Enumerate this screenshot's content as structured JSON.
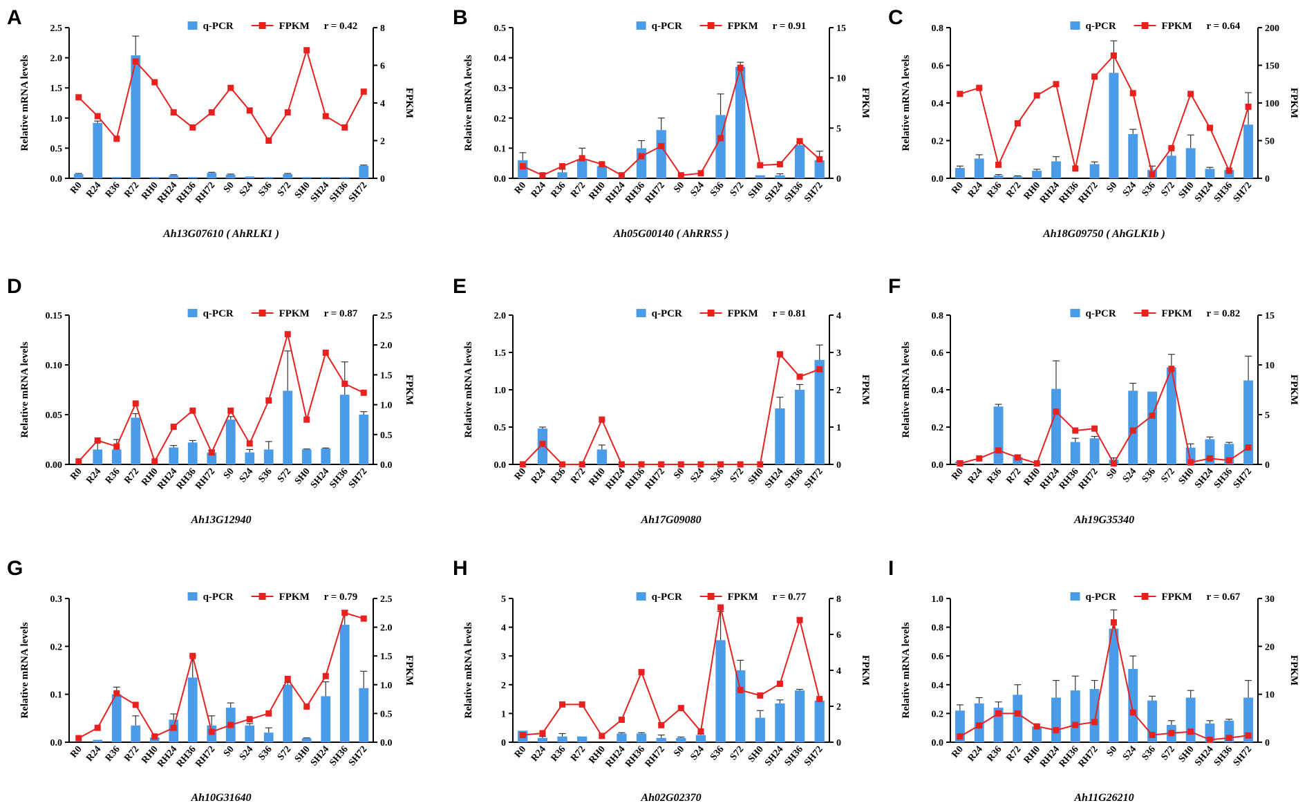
{
  "colors": {
    "bar": "#4a9be8",
    "line": "#e8211f",
    "axis": "#000000",
    "errorbar": "#333333"
  },
  "chart_data": [
    {
      "type": "bar+line",
      "letter": "A",
      "gene": "Ah13G07610 ( AhRLK1 )",
      "legend": {
        "bar": "q-PCR",
        "line": "FPKM",
        "r": "r = 0.42"
      },
      "ylabel": "Relative mRNA levels",
      "y2label": "FPKM",
      "categories": [
        "R0",
        "R24",
        "R36",
        "R72",
        "RH0",
        "RH24",
        "RH36",
        "RH72",
        "S0",
        "S24",
        "S36",
        "S72",
        "SH0",
        "SH24",
        "SH36",
        "SH72"
      ],
      "ylim": [
        0,
        2.5
      ],
      "yticks": [
        "0.0",
        "0.5",
        "1.0",
        "1.5",
        "2.0",
        "2.5"
      ],
      "y2lim": [
        0,
        8
      ],
      "y2ticks": [
        "0",
        "2",
        "4",
        "6",
        "8"
      ],
      "bars": [
        0.07,
        0.92,
        0.02,
        2.04,
        0.02,
        0.05,
        0.02,
        0.09,
        0.06,
        0.03,
        0.02,
        0.07,
        0.02,
        0.02,
        0.02,
        0.21
      ],
      "errors": [
        0.01,
        0.03,
        0.0,
        0.32,
        0.0,
        0.01,
        0.0,
        0.01,
        0.01,
        0.0,
        0.0,
        0.01,
        0.0,
        0.0,
        0.0,
        0.01
      ],
      "fpkm": [
        4.3,
        3.3,
        2.1,
        6.2,
        5.1,
        3.5,
        2.7,
        3.5,
        4.8,
        3.6,
        2.0,
        3.5,
        6.8,
        3.3,
        2.7,
        4.6
      ]
    },
    {
      "type": "bar+line",
      "letter": "B",
      "gene": "Ah05G00140 ( AhRRS5 )",
      "legend": {
        "bar": "q-PCR",
        "line": "FPKM",
        "r": "r = 0.91"
      },
      "ylabel": "Relative mRNA levels",
      "y2label": "FPKM",
      "categories": [
        "R0",
        "R24",
        "R36",
        "R72",
        "RH0",
        "RH24",
        "RH36",
        "RH72",
        "S0",
        "S24",
        "S36",
        "S72",
        "SH0",
        "SH24",
        "SH36",
        "SH72"
      ],
      "ylim": [
        0,
        0.5
      ],
      "yticks": [
        "0.0",
        "0.1",
        "0.2",
        "0.3",
        "0.4",
        "0.5"
      ],
      "y2lim": [
        0,
        15
      ],
      "y2ticks": [
        "0",
        "5",
        "10",
        "15"
      ],
      "bars": [
        0.06,
        0.0,
        0.02,
        0.06,
        0.04,
        0.0,
        0.1,
        0.16,
        0.0,
        0.0,
        0.21,
        0.37,
        0.01,
        0.01,
        0.11,
        0.06
      ],
      "errors": [
        0.025,
        0.0,
        0.01,
        0.04,
        0.01,
        0.0,
        0.025,
        0.04,
        0.0,
        0.0,
        0.07,
        0.015,
        0.0,
        0.005,
        0.01,
        0.03
      ],
      "fpkm": [
        1.2,
        0.3,
        1.2,
        2.0,
        1.4,
        0.3,
        2.2,
        3.2,
        0.3,
        0.5,
        4.0,
        11.0,
        1.3,
        1.4,
        3.7,
        1.9
      ]
    },
    {
      "type": "bar+line",
      "letter": "C",
      "gene": "Ah18G09750 ( AhGLK1b )",
      "legend": {
        "bar": "q-PCR",
        "line": "FPKM",
        "r": "r = 0.64"
      },
      "ylabel": "Relative mRNA levels",
      "y2label": "FPKM",
      "categories": [
        "R0",
        "R24",
        "R36",
        "R72",
        "RH0",
        "RH24",
        "RH36",
        "RH72",
        "S0",
        "S24",
        "S36",
        "S72",
        "SH0",
        "SH24",
        "SH36",
        "SH72"
      ],
      "ylim": [
        0,
        0.8
      ],
      "yticks": [
        "0.0",
        "0.2",
        "0.4",
        "0.6",
        "0.8"
      ],
      "y2lim": [
        0,
        200
      ],
      "y2ticks": [
        "0",
        "50",
        "100",
        "150",
        "200"
      ],
      "bars": [
        0.055,
        0.105,
        0.015,
        0.01,
        0.04,
        0.09,
        0.0,
        0.075,
        0.56,
        0.235,
        0.045,
        0.12,
        0.16,
        0.05,
        0.045,
        0.285
      ],
      "errors": [
        0.01,
        0.02,
        0.005,
        0.003,
        0.008,
        0.025,
        0.0,
        0.012,
        0.17,
        0.025,
        0.02,
        0.04,
        0.07,
        0.008,
        0.01,
        0.17
      ],
      "fpkm": [
        112,
        120,
        18,
        73,
        110,
        125,
        13,
        135,
        163,
        113,
        5,
        40,
        112,
        67,
        10,
        95
      ]
    },
    {
      "type": "bar+line",
      "letter": "D",
      "gene": "Ah13G12940",
      "legend": {
        "bar": "q-PCR",
        "line": "FPKM",
        "r": "r = 0.87"
      },
      "ylabel": "Relative mRNA levels",
      "y2label": "FPKM",
      "categories": [
        "R0",
        "R24",
        "R36",
        "R72",
        "RH0",
        "RH24",
        "RH36",
        "RH72",
        "S0",
        "S24",
        "S36",
        "S72",
        "SH0",
        "SH24",
        "SH36",
        "SH72"
      ],
      "ylim": [
        0,
        0.15
      ],
      "yticks": [
        "0.00",
        "0.05",
        "0.10",
        "0.15"
      ],
      "y2lim": [
        0,
        2.5
      ],
      "y2ticks": [
        "0.0",
        "0.5",
        "1.0",
        "1.5",
        "2.0",
        "2.5"
      ],
      "bars": [
        0.0,
        0.015,
        0.015,
        0.047,
        0.0,
        0.017,
        0.022,
        0.012,
        0.045,
        0.012,
        0.015,
        0.074,
        0.015,
        0.016,
        0.07,
        0.05
      ],
      "errors": [
        0.0,
        0.008,
        0.01,
        0.004,
        0.0,
        0.002,
        0.002,
        0.002,
        0.003,
        0.003,
        0.008,
        0.04,
        0.0005,
        0.0005,
        0.033,
        0.003
      ],
      "fpkm": [
        0.05,
        0.4,
        0.3,
        1.02,
        0.05,
        0.63,
        0.9,
        0.2,
        0.9,
        0.35,
        1.07,
        2.18,
        0.75,
        1.87,
        1.35,
        1.2
      ]
    },
    {
      "type": "bar+line",
      "letter": "E",
      "gene": "Ah17G09080",
      "legend": {
        "bar": "q-PCR",
        "line": "FPKM",
        "r": "r = 0.81"
      },
      "ylabel": "Relative mRNA levels",
      "y2label": "FPKM",
      "categories": [
        "R0",
        "R24",
        "R36",
        "R72",
        "RH0",
        "RH24",
        "RH36",
        "RH72",
        "S0",
        "S24",
        "S36",
        "S72",
        "SH0",
        "SH24",
        "SH36",
        "SH72"
      ],
      "ylim": [
        0,
        2.0
      ],
      "yticks": [
        "0.0",
        "0.5",
        "1.0",
        "1.5",
        "2.0"
      ],
      "y2lim": [
        0,
        4
      ],
      "y2ticks": [
        "0",
        "1",
        "2",
        "3",
        "4"
      ],
      "bars": [
        0.0,
        0.48,
        0.0,
        0.0,
        0.2,
        0.0,
        0.0,
        0.0,
        0.0,
        0.0,
        0.0,
        0.0,
        0.0,
        0.75,
        1.0,
        1.4
      ],
      "errors": [
        0.0,
        0.02,
        0.0,
        0.0,
        0.06,
        0.0,
        0.0,
        0.0,
        0.0,
        0.0,
        0.0,
        0.0,
        0.0,
        0.15,
        0.07,
        0.2
      ],
      "fpkm": [
        0.0,
        0.55,
        0.0,
        0.0,
        1.2,
        0.0,
        0.0,
        0.0,
        0.0,
        0.0,
        0.0,
        0.0,
        0.0,
        2.95,
        2.35,
        2.55
      ]
    },
    {
      "type": "bar+line",
      "letter": "F",
      "gene": "Ah19G35340",
      "legend": {
        "bar": "q-PCR",
        "line": "FPKM",
        "r": "r = 0.82"
      },
      "ylabel": "Relative mRNA levels",
      "y2label": "FPKM",
      "categories": [
        "R0",
        "R24",
        "R36",
        "R72",
        "RH0",
        "RH24",
        "RH36",
        "RH72",
        "S0",
        "S24",
        "S36",
        "S72",
        "SH0",
        "SH24",
        "SH36",
        "SH72"
      ],
      "ylim": [
        0,
        0.8
      ],
      "yticks": [
        "0.0",
        "0.2",
        "0.4",
        "0.6",
        "0.8"
      ],
      "y2lim": [
        0,
        15
      ],
      "y2ticks": [
        "0",
        "5",
        "10",
        "15"
      ],
      "bars": [
        0.015,
        0.005,
        0.31,
        0.04,
        0.005,
        0.405,
        0.12,
        0.14,
        0.025,
        0.395,
        0.39,
        0.52,
        0.09,
        0.135,
        0.11,
        0.45
      ],
      "errors": [
        0.005,
        0.0,
        0.012,
        0.01,
        0.0,
        0.15,
        0.02,
        0.01,
        0.01,
        0.04,
        0.0,
        0.07,
        0.02,
        0.012,
        0.008,
        0.13
      ],
      "fpkm": [
        0.1,
        0.6,
        1.4,
        0.7,
        0.1,
        5.3,
        3.4,
        3.6,
        0.1,
        3.4,
        4.9,
        9.6,
        0.2,
        0.6,
        0.4,
        1.7
      ]
    },
    {
      "type": "bar+line",
      "letter": "G",
      "gene": "Ah10G31640",
      "legend": {
        "bar": "q-PCR",
        "line": "FPKM",
        "r": "r = 0.79"
      },
      "ylabel": "Relative mRNA levels",
      "y2label": "FPKM",
      "categories": [
        "R0",
        "R24",
        "R36",
        "R72",
        "RH0",
        "RH24",
        "RH36",
        "RH72",
        "S0",
        "S24",
        "S36",
        "S72",
        "SH0",
        "SH24",
        "SH36",
        "SH72"
      ],
      "ylim": [
        0,
        0.3
      ],
      "yticks": [
        "0.0",
        "0.1",
        "0.2",
        "0.3"
      ],
      "y2lim": [
        0,
        2.5
      ],
      "y2ticks": [
        "0.0",
        "0.5",
        "1.0",
        "1.5",
        "2.0",
        "2.5"
      ],
      "bars": [
        0.0,
        0.005,
        0.1,
        0.035,
        0.01,
        0.047,
        0.135,
        0.035,
        0.072,
        0.035,
        0.02,
        0.12,
        0.008,
        0.096,
        0.245,
        0.113
      ],
      "errors": [
        0.0,
        0.0,
        0.015,
        0.02,
        0.003,
        0.012,
        0.045,
        0.02,
        0.01,
        0.004,
        0.01,
        0.005,
        0.001,
        0.03,
        0.03,
        0.035
      ],
      "fpkm": [
        0.07,
        0.25,
        0.85,
        0.65,
        0.1,
        0.25,
        1.5,
        0.18,
        0.3,
        0.4,
        0.5,
        1.1,
        0.62,
        1.15,
        2.25,
        2.15
      ]
    },
    {
      "type": "bar+line",
      "letter": "H",
      "gene": "Ah02G02370",
      "legend": {
        "bar": "q-PCR",
        "line": "FPKM",
        "r": "r = 0.77"
      },
      "ylabel": "Relative mRNA levels",
      "y2label": "FPKM",
      "categories": [
        "R0",
        "R24",
        "R36",
        "R72",
        "RH0",
        "RH24",
        "RH36",
        "RH72",
        "S0",
        "S24",
        "S36",
        "S72",
        "SH0",
        "SH24",
        "SH36",
        "SH72"
      ],
      "ylim": [
        0,
        5
      ],
      "yticks": [
        "0",
        "1",
        "2",
        "3",
        "4",
        "5"
      ],
      "y2lim": [
        0,
        8
      ],
      "y2ticks": [
        "0",
        "2",
        "4",
        "6",
        "8"
      ],
      "bars": [
        0.4,
        0.15,
        0.2,
        0.2,
        0.0,
        0.3,
        0.3,
        0.15,
        0.15,
        0.25,
        3.55,
        2.5,
        0.85,
        1.35,
        1.8,
        1.45
      ],
      "errors": [
        0.0,
        0.05,
        0.1,
        0.0,
        0.0,
        0.03,
        0.03,
        0.1,
        0.03,
        0.03,
        1.0,
        0.35,
        0.25,
        0.12,
        0.04,
        0.05
      ],
      "fpkm": [
        0.4,
        0.5,
        2.1,
        2.1,
        0.35,
        1.25,
        3.9,
        0.95,
        1.9,
        0.6,
        7.5,
        2.9,
        2.6,
        3.25,
        6.8,
        2.4
      ]
    },
    {
      "type": "bar+line",
      "letter": "I",
      "gene": "Ah11G26210",
      "legend": {
        "bar": "q-PCR",
        "line": "FPKM",
        "r": "r = 0.67"
      },
      "ylabel": "Relative mRNA levels",
      "y2label": "FPKM",
      "categories": [
        "R0",
        "R24",
        "R36",
        "R72",
        "RH0",
        "RH24",
        "RH36",
        "RH72",
        "S0",
        "S24",
        "S36",
        "S72",
        "SH0",
        "SH24",
        "SH36",
        "SH72"
      ],
      "ylim": [
        0,
        1.0
      ],
      "yticks": [
        "0.0",
        "0.2",
        "0.4",
        "0.6",
        "0.8",
        "1.0"
      ],
      "y2lim": [
        0,
        30
      ],
      "y2ticks": [
        "0",
        "10",
        "20",
        "30"
      ],
      "bars": [
        0.22,
        0.27,
        0.24,
        0.33,
        0.11,
        0.31,
        0.36,
        0.37,
        0.79,
        0.51,
        0.29,
        0.12,
        0.31,
        0.13,
        0.15,
        0.31
      ],
      "errors": [
        0.04,
        0.04,
        0.04,
        0.07,
        0.01,
        0.12,
        0.1,
        0.06,
        0.13,
        0.09,
        0.03,
        0.03,
        0.05,
        0.02,
        0.01,
        0.12
      ],
      "fpkm": [
        1.2,
        3.5,
        6.0,
        6.0,
        3.3,
        2.5,
        3.6,
        4.2,
        25.0,
        6.2,
        1.5,
        1.9,
        2.2,
        0.5,
        0.9,
        1.4
      ]
    }
  ]
}
